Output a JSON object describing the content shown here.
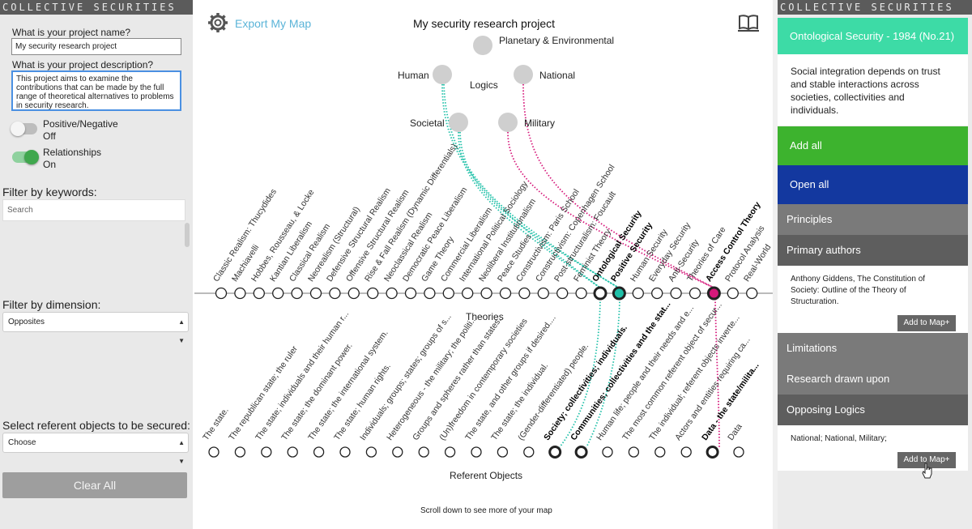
{
  "brand": "COLLECTIVE SECURITIES",
  "left": {
    "name_label": "What is your project name?",
    "name_value": "My security research project",
    "desc_label": "What is your project description?",
    "desc_value": "This project aims to examine the contributions that can be made by the full range of theoretical alternatives to problems in security research.",
    "toggle1_label": "Positive/Negative",
    "toggle1_state": "Off",
    "toggle2_label": "Relationships",
    "toggle2_state": "On",
    "keywords_label": "Filter by keywords:",
    "search_placeholder": "Search",
    "dimension_label": "Filter by dimension:",
    "dimension_value": "Opposites",
    "referent_label": "Select referent objects to be secured:",
    "referent_value": "Choose",
    "clear_button": "Clear All"
  },
  "header": {
    "export": "Export My Map",
    "project_title": "My security research project"
  },
  "logics": {
    "center": "Logics",
    "items": [
      "Planetary & Environmental",
      "Human",
      "National",
      "Societal",
      "Military"
    ]
  },
  "theories": {
    "axis_label": "Theories",
    "items": [
      "Classic Realism: Thucydides",
      "Machiavelli",
      "Hobbes, Rousseau, & Locke",
      "Kantian Liberalism",
      "Classical Realism",
      "Neorealism (Structural)",
      "Defensive Structural Realism",
      "Offensive Structural Realism",
      "Rise & Fall Realism (Dynamic Differentials)",
      "Neoclassical Realism",
      "Democratic Peace Liberalism",
      "Game Theory",
      "Commercial Liberalism",
      "International Political Sociology",
      "Neoliberal Institutionalism",
      "Peace Studies",
      "Constructivism: Paris School",
      "Constructivism: Copenhagen School",
      "Post-structuralism: Foucault",
      "Feminist Theory",
      "Ontological Security",
      "Positive Security",
      "Human Security",
      "Everyday Security",
      "Anti-Security",
      "Theories of Care",
      "Access Control Theory",
      "Protocol Analysis",
      "Real-World"
    ],
    "selected": [
      20,
      21,
      26
    ]
  },
  "referents": {
    "axis_label": "Referent Objects",
    "items": [
      "The state.",
      "The republican state; the ruler",
      "The state; individuals and their human r...",
      "The state; the dominant power.",
      "The state; the international system.",
      "The state; human rights.",
      "Individuals; groups; states; groups of s...",
      "Heterogeneous - the military; the politi...",
      "Groups and spheres rather than states.",
      "(Un)freedom in contemporary societies",
      "The state, and other groups if desired....",
      "The state; the individual.",
      "(Gender-differentiated) people.",
      "Society; collectivities; individuals.",
      "Communities; collectivities and the stat...",
      "Human life; people and their needs and e...",
      "The most common referent object of secur...",
      "The individual; referent objects inverte...",
      "Actors and entities requiring ca...",
      "Data - the state/milita...",
      "Data"
    ],
    "selected": [
      13,
      14,
      19
    ]
  },
  "scroll_note": "Scroll down to see more of your map",
  "right": {
    "title": "Ontological Security - 1984 (No.21)",
    "description": "Social integration depends on trust and stable interactions across societies, collectivities and individuals.",
    "add_all": "Add all",
    "open_all": "Open all",
    "principles": "Principles",
    "primary_authors": "Primary authors",
    "authors_text": "Anthony Giddens, The Constitution of Society: Outline of the Theory of Structuration.",
    "add_to_map": "Add to Map+",
    "limitations": "Limitations",
    "research_drawn_upon": "Research drawn upon",
    "opposing_logics": "Opposing Logics",
    "opposing_text": "National; National, Military;",
    "add_to_map_2": "Add to Map+"
  },
  "colors": {
    "teal": "#1fc0a8",
    "magenta": "#d6187a",
    "green": "#3db32e",
    "blue": "#13389f",
    "mint": "#3ddba6",
    "link": "#5bb4d8"
  }
}
